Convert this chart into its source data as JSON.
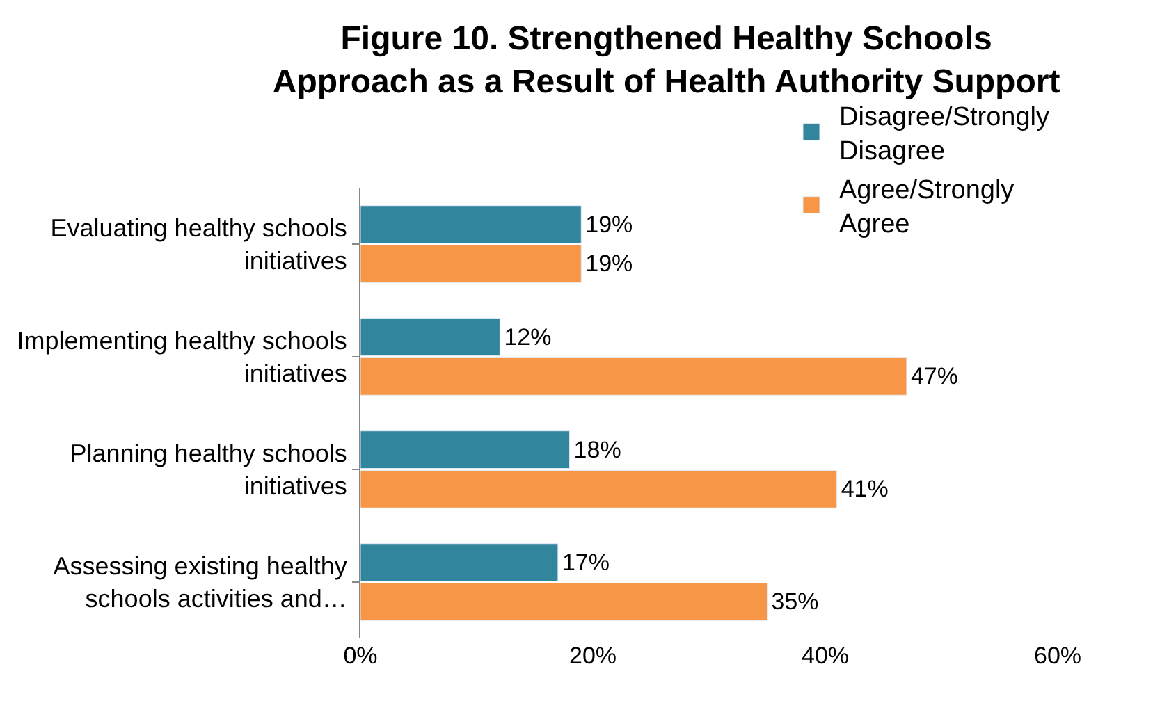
{
  "chart_data": {
    "type": "bar",
    "orientation": "horizontal",
    "title": "Figure 10. Strengthened Healthy Schools\nApproach as a Result of Health Authority Support",
    "categories": [
      "Evaluating healthy schools\ninitiatives",
      "Implementing healthy schools\ninitiatives",
      "Planning healthy schools\ninitiatives",
      "Assessing existing healthy\nschools activities and…"
    ],
    "series": [
      {
        "name": "Disagree/Strongly\nDisagree",
        "color": "#31859c",
        "values": [
          19,
          12,
          18,
          17
        ],
        "value_labels": [
          "19%",
          "12%",
          "18%",
          "17%"
        ]
      },
      {
        "name": "Agree/Strongly\nAgree",
        "color": "#f79646",
        "values": [
          19,
          47,
          41,
          35
        ],
        "value_labels": [
          "19%",
          "47%",
          "41%",
          "35%"
        ]
      }
    ],
    "xlim": [
      0,
      60
    ],
    "xticks": [
      {
        "value": 0,
        "label": "0%"
      },
      {
        "value": 20,
        "label": "20%"
      },
      {
        "value": 40,
        "label": "40%"
      },
      {
        "value": 60,
        "label": "60%"
      }
    ],
    "legend": "top right"
  }
}
